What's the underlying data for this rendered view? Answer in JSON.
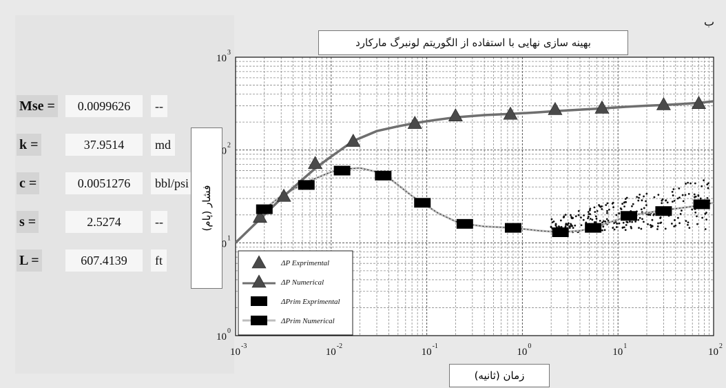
{
  "corner_label": "ب",
  "params": [
    {
      "label": "Mse =",
      "value": "0.0099626",
      "unit": "--"
    },
    {
      "label": "k =",
      "value": "37.9514",
      "unit": "md"
    },
    {
      "label": "c =",
      "value": "0.0051276",
      "unit": "bbl/psi"
    },
    {
      "label": "s =",
      "value": "2.5274",
      "unit": "--"
    },
    {
      "label": "L =",
      "value": "607.4139",
      "unit": "ft"
    }
  ],
  "colors": {
    "numerical_dp": "#6f6f6f",
    "prim_numerical": "#bdbdbd",
    "markers": "#4a4a4a",
    "prim_markers": "#000000"
  },
  "chart_data": {
    "type": "scatter",
    "title": "بهینه سازی نهایی با استفاده از الگوریتم لونبرگ مارکارد",
    "xlabel": "زمان (ثانیه)",
    "ylabel": "فشار (پام)",
    "xscale": "log",
    "yscale": "log",
    "xlim": [
      0.001,
      100
    ],
    "ylim": [
      1,
      1000
    ],
    "grid": true,
    "legend_position": "bottom-left",
    "x_ticks": [
      {
        "base": "10",
        "exp": "-3"
      },
      {
        "base": "10",
        "exp": "-2"
      },
      {
        "base": "10",
        "exp": "-1"
      },
      {
        "base": "10",
        "exp": "0"
      },
      {
        "base": "10",
        "exp": "1"
      },
      {
        "base": "10",
        "exp": "2"
      }
    ],
    "y_ticks": [
      {
        "base": "10",
        "exp": "0"
      },
      {
        "base": "10",
        "exp": "1"
      },
      {
        "base": "10",
        "exp": "2"
      },
      {
        "base": "10",
        "exp": "3"
      }
    ],
    "series": [
      {
        "name": "ΔP Exprimental",
        "marker": "triangle",
        "x": [
          0.0018,
          0.0032,
          0.0068,
          0.017,
          0.075,
          0.2,
          0.75,
          2.2,
          6.8,
          30,
          70
        ],
        "y": [
          19,
          32,
          72,
          125,
          195,
          235,
          245,
          275,
          285,
          310,
          320
        ]
      },
      {
        "name": "ΔP Numerical",
        "marker": "triangle-line",
        "x": [
          0.001,
          0.0015,
          0.002,
          0.003,
          0.005,
          0.007,
          0.01,
          0.017,
          0.03,
          0.05,
          0.075,
          0.12,
          0.2,
          0.4,
          0.75,
          1.5,
          2.2,
          4,
          6.8,
          12,
          20,
          30,
          50,
          70,
          100
        ],
        "y": [
          10,
          15,
          20,
          30,
          48,
          65,
          85,
          125,
          160,
          180,
          195,
          210,
          225,
          238,
          245,
          255,
          262,
          272,
          280,
          292,
          300,
          305,
          315,
          322,
          335
        ]
      },
      {
        "name": "ΔPrim Exprimental",
        "marker": "square",
        "x": [
          0.002,
          0.0055,
          0.013,
          0.035,
          0.09,
          0.25,
          0.8,
          2.5,
          5.5,
          13,
          30,
          75
        ],
        "y": [
          23,
          42,
          60,
          53,
          27,
          16,
          14.5,
          13,
          14.5,
          19.5,
          22,
          26
        ]
      },
      {
        "name": "ΔPrim Numerical",
        "marker": "square-line",
        "x": [
          0.002,
          0.003,
          0.0055,
          0.01,
          0.013,
          0.02,
          0.035,
          0.05,
          0.07,
          0.09,
          0.13,
          0.2,
          0.25,
          0.4,
          0.8,
          1.5,
          2.5,
          4,
          5.5,
          8,
          13,
          20,
          30,
          50,
          75,
          100
        ],
        "y": [
          23,
          32,
          45,
          58,
          62,
          64,
          56,
          42,
          32,
          27,
          21,
          17,
          16,
          15,
          14.5,
          13.5,
          13,
          13.5,
          14.5,
          16.5,
          19.5,
          21,
          22.5,
          24,
          25.5,
          27
        ]
      }
    ]
  }
}
